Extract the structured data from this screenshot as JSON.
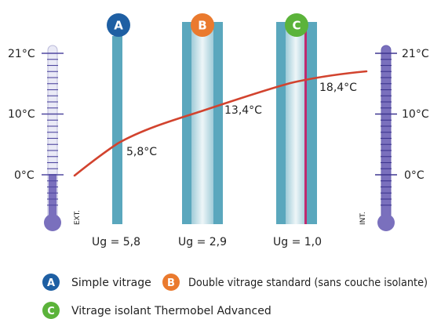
{
  "scale": {
    "labels": [
      "21°C",
      "10°C",
      "0°C"
    ]
  },
  "side_labels": {
    "exterior": "EXT.",
    "interior": "INT."
  },
  "glazings": [
    {
      "letter": "A",
      "color": "#1e5fa3",
      "temp": "5,8°C",
      "ug": "Ug = 5,8"
    },
    {
      "letter": "B",
      "color": "#ea7a2e",
      "temp": "13,4°C",
      "ug": "Ug = 2,9"
    },
    {
      "letter": "C",
      "color": "#5bb33a",
      "temp": "18,4°C",
      "ug": "Ug = 1,0"
    }
  ],
  "legend": [
    {
      "letter": "A",
      "color": "#1e5fa3",
      "text": "Simple vitrage"
    },
    {
      "letter": "B",
      "color": "#ea7a2e",
      "text": "Double vitrage standard (sans couche isolante)"
    },
    {
      "letter": "C",
      "color": "#5bb33a",
      "text": "Vitrage isolant Thermobel Advanced"
    }
  ],
  "colors": {
    "glass": "#5aa7bd",
    "glass_light": "#d5e8ee",
    "curve": "#d2432e",
    "coating": "#c02a6f",
    "therm_outline": "#b9b9d9",
    "therm_fill": "#7a70bd",
    "therm_tick": "#5048a0"
  }
}
